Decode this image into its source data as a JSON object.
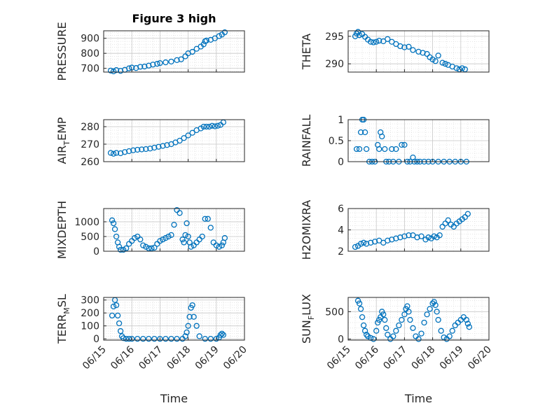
{
  "chart_data": [
    {
      "type": "scatter",
      "title": "Figure 3 high",
      "ylabel": "PRESSURE",
      "ylim": [
        675,
        950
      ],
      "yticks": [
        700,
        800,
        900
      ],
      "xlim": [
        0,
        5
      ],
      "xticks": [
        0,
        1,
        2,
        3,
        4,
        5
      ],
      "xticklabels": [],
      "marker_color": "#0072BD",
      "x": [
        0.25,
        0.35,
        0.45,
        0.6,
        0.75,
        0.9,
        1.0,
        1.15,
        1.3,
        1.45,
        1.6,
        1.75,
        1.9,
        2.0,
        2.2,
        2.4,
        2.6,
        2.75,
        2.9,
        3.0,
        3.15,
        3.3,
        3.45,
        3.55,
        3.6,
        3.65,
        3.8,
        3.95,
        4.1,
        4.2,
        4.3
      ],
      "y": [
        685,
        680,
        688,
        683,
        690,
        700,
        705,
        702,
        710,
        712,
        718,
        725,
        730,
        735,
        740,
        745,
        755,
        760,
        780,
        800,
        810,
        830,
        845,
        860,
        880,
        885,
        890,
        900,
        915,
        925,
        940
      ]
    },
    {
      "type": "scatter",
      "title": "",
      "ylabel": "THETA",
      "ylim": [
        288.5,
        296
      ],
      "yticks": [
        290,
        295
      ],
      "xlim": [
        0,
        5
      ],
      "xticks": [
        0,
        1,
        2,
        3,
        4,
        5
      ],
      "xticklabels": [],
      "marker_color": "#0072BD",
      "x": [
        0.25,
        0.3,
        0.35,
        0.4,
        0.5,
        0.6,
        0.7,
        0.8,
        0.9,
        1.0,
        1.1,
        1.25,
        1.4,
        1.55,
        1.7,
        1.85,
        2.0,
        2.15,
        2.3,
        2.5,
        2.65,
        2.8,
        2.9,
        3.0,
        3.1,
        3.2,
        3.35,
        3.45,
        3.55,
        3.7,
        3.85,
        3.95,
        4.05,
        4.15
      ],
      "y": [
        295,
        295.5,
        295.8,
        295.2,
        295.4,
        294.9,
        294.4,
        294,
        293.9,
        294,
        294.2,
        294.1,
        294.5,
        294,
        293.6,
        293.2,
        293.0,
        293.1,
        292.5,
        292.2,
        292,
        291.8,
        291.2,
        290.8,
        290.5,
        291.5,
        290.2,
        290,
        289.8,
        289.5,
        289.2,
        289.0,
        289.2,
        289.0
      ]
    },
    {
      "type": "scatter",
      "title": "",
      "ylabel": "AIR_TEMP",
      "ylim": [
        260,
        284
      ],
      "yticks": [
        260,
        270,
        280
      ],
      "xlim": [
        0,
        5
      ],
      "xticks": [
        0,
        1,
        2,
        3,
        4,
        5
      ],
      "xticklabels": [],
      "marker_color": "#0072BD",
      "x": [
        0.25,
        0.35,
        0.45,
        0.6,
        0.75,
        0.9,
        1.05,
        1.2,
        1.35,
        1.5,
        1.65,
        1.8,
        1.95,
        2.1,
        2.25,
        2.4,
        2.55,
        2.7,
        2.85,
        3.0,
        3.15,
        3.3,
        3.45,
        3.55,
        3.65,
        3.75,
        3.85,
        3.95,
        4.05,
        4.15,
        4.25
      ],
      "y": [
        265,
        264.5,
        265,
        264.8,
        265.5,
        266,
        266.5,
        266.8,
        267,
        267.2,
        267.5,
        268,
        268.5,
        269,
        269.5,
        270,
        271,
        272,
        273.5,
        275,
        276.5,
        278,
        279,
        280,
        280,
        280,
        280.5,
        280.2,
        280.5,
        281,
        282.5
      ]
    },
    {
      "type": "scatter",
      "title": "",
      "ylabel": "RAINFALL",
      "ylim": [
        0,
        1
      ],
      "yticks": [
        0,
        0.5,
        1
      ],
      "xlim": [
        0,
        5
      ],
      "xticks": [
        0,
        1,
        2,
        3,
        4,
        5
      ],
      "xticklabels": [],
      "marker_color": "#0072BD",
      "x": [
        0.3,
        0.4,
        0.45,
        0.5,
        0.55,
        0.6,
        0.65,
        0.75,
        0.85,
        0.95,
        1.05,
        1.1,
        1.15,
        1.2,
        1.3,
        1.35,
        1.45,
        1.55,
        1.6,
        1.7,
        1.8,
        1.9,
        2.0,
        2.1,
        2.2,
        2.3,
        2.35,
        2.45,
        2.55,
        2.7,
        2.85,
        3.0,
        3.2,
        3.4,
        3.6,
        3.8,
        4.0,
        4.2
      ],
      "y": [
        0.3,
        0.3,
        0.7,
        1.0,
        1.0,
        0.7,
        0.3,
        0,
        0,
        0,
        0.4,
        0.3,
        0.7,
        0.6,
        0.3,
        0,
        0,
        0.3,
        0,
        0.3,
        0,
        0.4,
        0.4,
        0,
        0,
        0.1,
        0,
        0,
        0,
        0,
        0,
        0,
        0,
        0,
        0,
        0,
        0,
        0
      ]
    },
    {
      "type": "scatter",
      "title": "",
      "ylabel": "MIXDEPTH",
      "ylim": [
        0,
        1450
      ],
      "yticks": [
        0,
        500,
        1000
      ],
      "xlim": [
        0,
        5
      ],
      "xticks": [
        0,
        1,
        2,
        3,
        4,
        5
      ],
      "xticklabels": [],
      "marker_color": "#0072BD",
      "x": [
        0.3,
        0.35,
        0.4,
        0.45,
        0.5,
        0.55,
        0.6,
        0.7,
        0.8,
        0.9,
        1.0,
        1.1,
        1.2,
        1.3,
        1.4,
        1.5,
        1.6,
        1.7,
        1.8,
        1.9,
        2.0,
        2.1,
        2.2,
        2.3,
        2.4,
        2.5,
        2.6,
        2.7,
        2.8,
        2.85,
        2.9,
        2.95,
        3.0,
        3.05,
        3.1,
        3.2,
        3.3,
        3.4,
        3.5,
        3.6,
        3.7,
        3.8,
        3.9,
        4.0,
        4.1,
        4.2,
        4.25,
        4.3
      ],
      "y": [
        1050,
        950,
        750,
        500,
        300,
        150,
        50,
        50,
        100,
        250,
        350,
        450,
        500,
        400,
        200,
        150,
        100,
        100,
        120,
        250,
        350,
        400,
        450,
        500,
        550,
        900,
        1400,
        1300,
        400,
        300,
        550,
        950,
        500,
        300,
        150,
        200,
        300,
        400,
        500,
        1100,
        1100,
        800,
        300,
        200,
        150,
        200,
        300,
        450
      ]
    },
    {
      "type": "scatter",
      "title": "",
      "ylabel": "H2OMIXRA",
      "ylim": [
        2,
        6
      ],
      "yticks": [
        2,
        4,
        6
      ],
      "xlim": [
        0,
        5
      ],
      "xticks": [
        0,
        1,
        2,
        3,
        4,
        5
      ],
      "xticklabels": [],
      "marker_color": "#0072BD",
      "x": [
        0.25,
        0.35,
        0.45,
        0.55,
        0.65,
        0.8,
        0.95,
        1.1,
        1.25,
        1.4,
        1.55,
        1.7,
        1.85,
        2.0,
        2.15,
        2.3,
        2.45,
        2.6,
        2.75,
        2.85,
        2.95,
        3.05,
        3.15,
        3.25,
        3.35,
        3.45,
        3.55,
        3.65,
        3.75,
        3.85,
        3.95,
        4.05,
        4.15,
        4.25
      ],
      "y": [
        2.4,
        2.5,
        2.7,
        2.8,
        2.7,
        2.8,
        2.9,
        3.0,
        2.8,
        3.0,
        3.1,
        3.2,
        3.3,
        3.4,
        3.5,
        3.5,
        3.3,
        3.4,
        3.1,
        3.3,
        3.2,
        3.4,
        3.3,
        3.5,
        4.3,
        4.6,
        4.9,
        4.5,
        4.3,
        4.6,
        4.8,
        5.0,
        5.2,
        5.5
      ]
    },
    {
      "type": "scatter",
      "title": "",
      "ylabel": "TERR_MSL",
      "ylim": [
        -10,
        320
      ],
      "yticks": [
        0,
        100,
        200,
        300
      ],
      "xlim": [
        0,
        5
      ],
      "xticks": [
        0,
        1,
        2,
        3,
        4,
        5
      ],
      "xticklabels": [
        "06/15",
        "06/16",
        "06/17",
        "06/18",
        "06/19",
        "06/20"
      ],
      "xlabel": "Time",
      "marker_color": "#0072BD",
      "x": [
        0.3,
        0.35,
        0.4,
        0.45,
        0.5,
        0.55,
        0.6,
        0.65,
        0.7,
        0.8,
        0.9,
        1.0,
        1.2,
        1.4,
        1.6,
        1.8,
        2.0,
        2.2,
        2.4,
        2.6,
        2.8,
        2.9,
        2.95,
        3.0,
        3.05,
        3.1,
        3.15,
        3.2,
        3.3,
        3.4,
        3.6,
        3.8,
        4.0,
        4.1,
        4.15,
        4.2,
        4.25
      ],
      "y": [
        180,
        250,
        300,
        260,
        180,
        120,
        60,
        20,
        5,
        0,
        0,
        0,
        0,
        0,
        0,
        0,
        0,
        0,
        0,
        0,
        0,
        20,
        50,
        100,
        170,
        240,
        260,
        170,
        100,
        20,
        0,
        0,
        0,
        10,
        30,
        40,
        30
      ]
    },
    {
      "type": "scatter",
      "title": "",
      "ylabel": "SUN_FLUX",
      "ylim": [
        -20,
        760
      ],
      "yticks": [
        0,
        500
      ],
      "xlim": [
        0,
        5
      ],
      "xticks": [
        0,
        1,
        2,
        3,
        4,
        5
      ],
      "xticklabels": [
        "06/15",
        "06/16",
        "06/17",
        "06/18",
        "06/19",
        "06/20"
      ],
      "xlabel": "Time",
      "marker_color": "#0072BD",
      "x": [
        0.35,
        0.4,
        0.45,
        0.5,
        0.55,
        0.6,
        0.65,
        0.7,
        0.8,
        0.9,
        1.0,
        1.05,
        1.1,
        1.15,
        1.2,
        1.25,
        1.3,
        1.35,
        1.4,
        1.5,
        1.6,
        1.7,
        1.8,
        1.9,
        2.0,
        2.05,
        2.1,
        2.15,
        2.2,
        2.3,
        2.4,
        2.5,
        2.6,
        2.7,
        2.8,
        2.9,
        3.0,
        3.05,
        3.1,
        3.15,
        3.2,
        3.3,
        3.4,
        3.5,
        3.6,
        3.7,
        3.8,
        3.9,
        4.0,
        4.1,
        4.2,
        4.25,
        4.3
      ],
      "y": [
        700,
        650,
        550,
        400,
        250,
        150,
        80,
        50,
        20,
        0,
        150,
        300,
        350,
        400,
        500,
        450,
        350,
        200,
        80,
        0,
        50,
        150,
        250,
        350,
        450,
        550,
        600,
        500,
        350,
        200,
        50,
        0,
        100,
        300,
        450,
        550,
        650,
        680,
        620,
        500,
        350,
        150,
        30,
        0,
        50,
        150,
        250,
        300,
        350,
        400,
        350,
        280,
        220
      ]
    }
  ]
}
